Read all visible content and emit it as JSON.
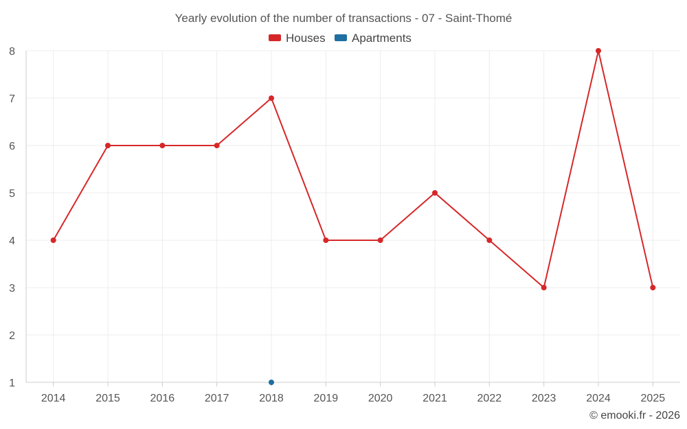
{
  "chart_data": {
    "type": "line",
    "title": "Yearly evolution of the number of transactions - 07 - Saint-Thomé",
    "categories": [
      "2014",
      "2015",
      "2016",
      "2017",
      "2018",
      "2019",
      "2020",
      "2021",
      "2022",
      "2023",
      "2024",
      "2025"
    ],
    "series": [
      {
        "name": "Houses",
        "color": "#d62728",
        "values": [
          4,
          6,
          6,
          6,
          7,
          4,
          4,
          5,
          4,
          3,
          8,
          3
        ]
      },
      {
        "name": "Apartments",
        "color": "#1f6fa0",
        "values": [
          null,
          null,
          null,
          null,
          1,
          null,
          null,
          null,
          null,
          null,
          null,
          null
        ]
      }
    ],
    "ylim": [
      1,
      8
    ],
    "yticks": [
      1,
      2,
      3,
      4,
      5,
      6,
      7,
      8
    ],
    "grid": true,
    "legend": "top-center"
  },
  "credit": "© emooki.fr - 2026"
}
